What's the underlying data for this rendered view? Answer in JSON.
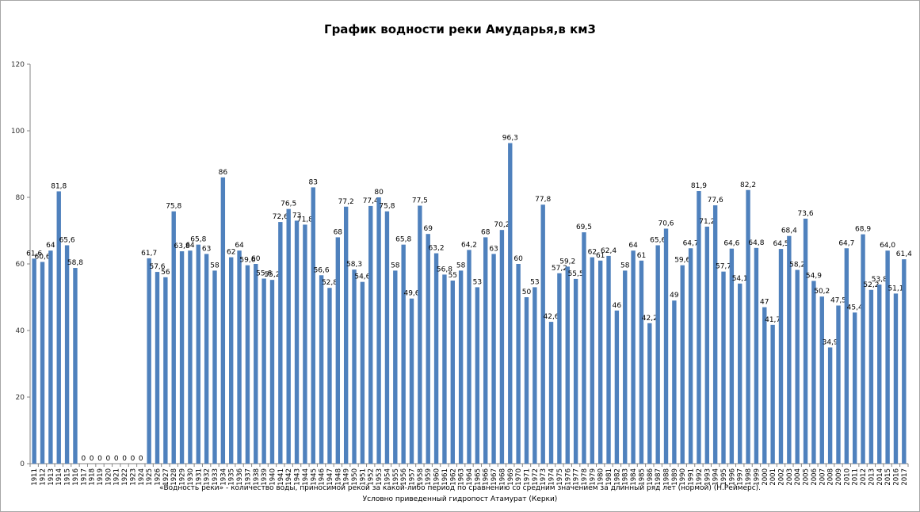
{
  "chart_data": {
    "type": "bar",
    "title": "График водности реки Амударья,в км3",
    "color": "#4f81bd",
    "ylim": [
      0,
      120
    ],
    "y_ticks": [
      0,
      20,
      40,
      60,
      80,
      100,
      120
    ],
    "grid": false,
    "legend": "none",
    "categories": [
      "1911",
      "1912",
      "1913",
      "1914",
      "1915",
      "1916",
      "1917",
      "1918",
      "1919",
      "1920",
      "1921",
      "1922",
      "1923",
      "1924",
      "1925",
      "1926",
      "1927",
      "1928",
      "1929",
      "1930",
      "1931",
      "1932",
      "1933",
      "1934",
      "1935",
      "1936",
      "1937",
      "1938",
      "1939",
      "1940",
      "1941",
      "1942",
      "1943",
      "1944",
      "1945",
      "1946",
      "1947",
      "1948",
      "1949",
      "1950",
      "1951",
      "1952",
      "1953",
      "1954",
      "1955",
      "1956",
      "1957",
      "1958",
      "1959",
      "1960",
      "1961",
      "1962",
      "1963",
      "1964",
      "1965",
      "1966",
      "1967",
      "1968",
      "1969",
      "1970",
      "1971",
      "1972",
      "1973",
      "1974",
      "1975",
      "1976",
      "1977",
      "1978",
      "1979",
      "1980",
      "1981",
      "1982",
      "1983",
      "1984",
      "1985",
      "1986",
      "1987",
      "1988",
      "1989",
      "1990",
      "1991",
      "1992",
      "1993",
      "1994",
      "1995",
      "1996",
      "1997",
      "1998",
      "1999",
      "2000",
      "2001",
      "2002",
      "2003",
      "2004",
      "2005",
      "2006",
      "2007",
      "2008",
      "2009",
      "2010",
      "2011",
      "2012",
      "2013",
      "2014",
      "2015",
      "2016",
      "2017"
    ],
    "values": [
      61.6,
      60.6,
      64,
      81.8,
      65.6,
      58.8,
      0,
      0,
      0,
      0,
      0,
      0,
      0,
      0,
      61.7,
      57.6,
      56,
      75.8,
      63.8,
      64,
      65.8,
      63,
      58,
      86,
      62,
      64,
      59.6,
      60,
      55.6,
      55.2,
      72.6,
      76.5,
      73,
      71.8,
      83,
      56.6,
      52.8,
      68,
      77.2,
      58.3,
      54.6,
      77.4,
      80,
      75.8,
      58,
      65.8,
      49.6,
      77.5,
      69,
      63.2,
      56.8,
      55,
      58,
      64.2,
      53,
      68,
      63,
      70.2,
      96.3,
      60,
      50,
      53,
      77.8,
      42.6,
      57.2,
      59.2,
      55.5,
      69.5,
      62,
      61,
      62.4,
      46,
      58,
      64,
      61,
      42.2,
      65.6,
      70.6,
      49,
      59.6,
      64.7,
      81.9,
      71.2,
      77.6,
      57.7,
      64.6,
      54.1,
      82.2,
      64.8,
      47,
      41.7,
      64.5,
      68.4,
      58.2,
      73.6,
      54.9,
      50.2,
      34.9,
      47.5,
      64.7,
      45.4,
      68.9,
      52.2,
      53.8,
      64.0,
      51.1,
      61.4
    ],
    "labels": [
      "61,6",
      "60,6",
      "64",
      "81,8",
      "65,6",
      "58,8",
      "0",
      "0",
      "0",
      "0",
      "0",
      "0",
      "0",
      "0",
      "61,7",
      "57,6",
      "56",
      "75,8",
      "63,8",
      "64",
      "65,8",
      "63",
      "58",
      "86",
      "62",
      "64",
      "59,6",
      "60",
      "55,6",
      "55,2",
      "72,6",
      "76,5",
      "73",
      "71,8",
      "83",
      "56,6",
      "52,8",
      "68",
      "77,2",
      "58,3",
      "54,6",
      "77,4",
      "80",
      "75,8",
      "58",
      "65,8",
      "49,6",
      "77,5",
      "69",
      "63,2",
      "56,8",
      "55",
      "58",
      "64,2",
      "53",
      "68",
      "63",
      "70,2",
      "96,3",
      "60",
      "50",
      "53",
      "77,8",
      "42,6",
      "57,2",
      "59,2",
      "55,5",
      "69,5",
      "62",
      "61",
      "62,4",
      "46",
      "58",
      "64",
      "61",
      "42,2",
      "65,6",
      "70,6",
      "49",
      "59,6",
      "64,7",
      "81,9",
      "71,2",
      "77,6",
      "57,7",
      "64,6",
      "54,1",
      "82,2",
      "64,8",
      "47",
      "41,7",
      "64,5",
      "68,4",
      "58,2",
      "73,6",
      "54,9",
      "50,2",
      "34,9",
      "47,5",
      "64,7",
      "45,4",
      "68,9",
      "52,2",
      "53,8",
      "64,0",
      "51,1",
      "61,4"
    ],
    "footnote_1": "«Водность реки» - количество воды, приносимой рекой за какой-либо период по сравнению со средним значением за длинный ряд лет (нормой) (Н.Реймерс).",
    "footnote_2": "Условно приведенный гидропост Атамурат (Керки)"
  }
}
